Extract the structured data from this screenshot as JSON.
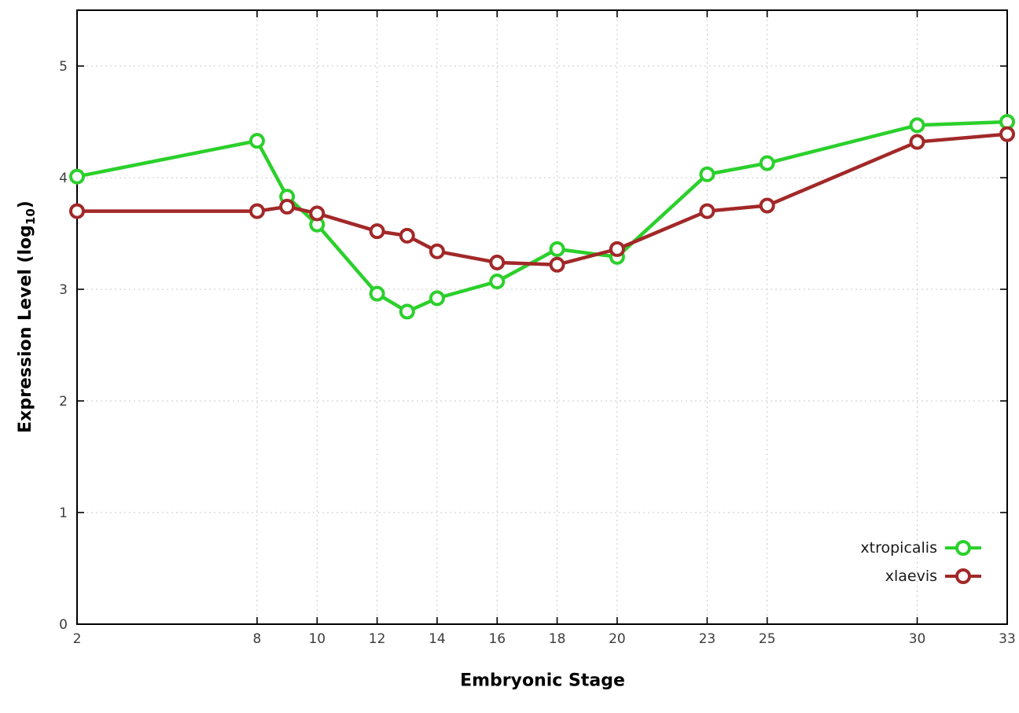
{
  "chart_data": {
    "type": "line",
    "title": "",
    "xlabel": "Embryonic Stage",
    "ylabel": {
      "main": "Expression Level (log",
      "sub": "10",
      "end": ")"
    },
    "grid": true,
    "legend_position": "bottom-right",
    "xlim": [
      2,
      33
    ],
    "ylim": [
      0,
      5.5
    ],
    "x_ticks": [
      2,
      8,
      10,
      12,
      14,
      16,
      18,
      20,
      23,
      25,
      30,
      33
    ],
    "y_ticks": [
      0,
      1,
      2,
      3,
      4,
      5
    ],
    "x": [
      2,
      8,
      9,
      10,
      12,
      13,
      14,
      16,
      18,
      20,
      23,
      25,
      30,
      33
    ],
    "series": [
      {
        "name": "xtropicalis",
        "color": "#2bd02b",
        "values": [
          4.01,
          4.33,
          3.83,
          3.58,
          2.96,
          2.8,
          2.92,
          3.07,
          3.36,
          3.29,
          4.03,
          4.13,
          4.47,
          4.5
        ]
      },
      {
        "name": "xlaevis",
        "color": "#a22828",
        "values": [
          3.7,
          3.7,
          3.74,
          3.68,
          3.52,
          3.48,
          3.34,
          3.24,
          3.22,
          3.36,
          3.7,
          3.75,
          4.32,
          4.39
        ]
      }
    ]
  }
}
